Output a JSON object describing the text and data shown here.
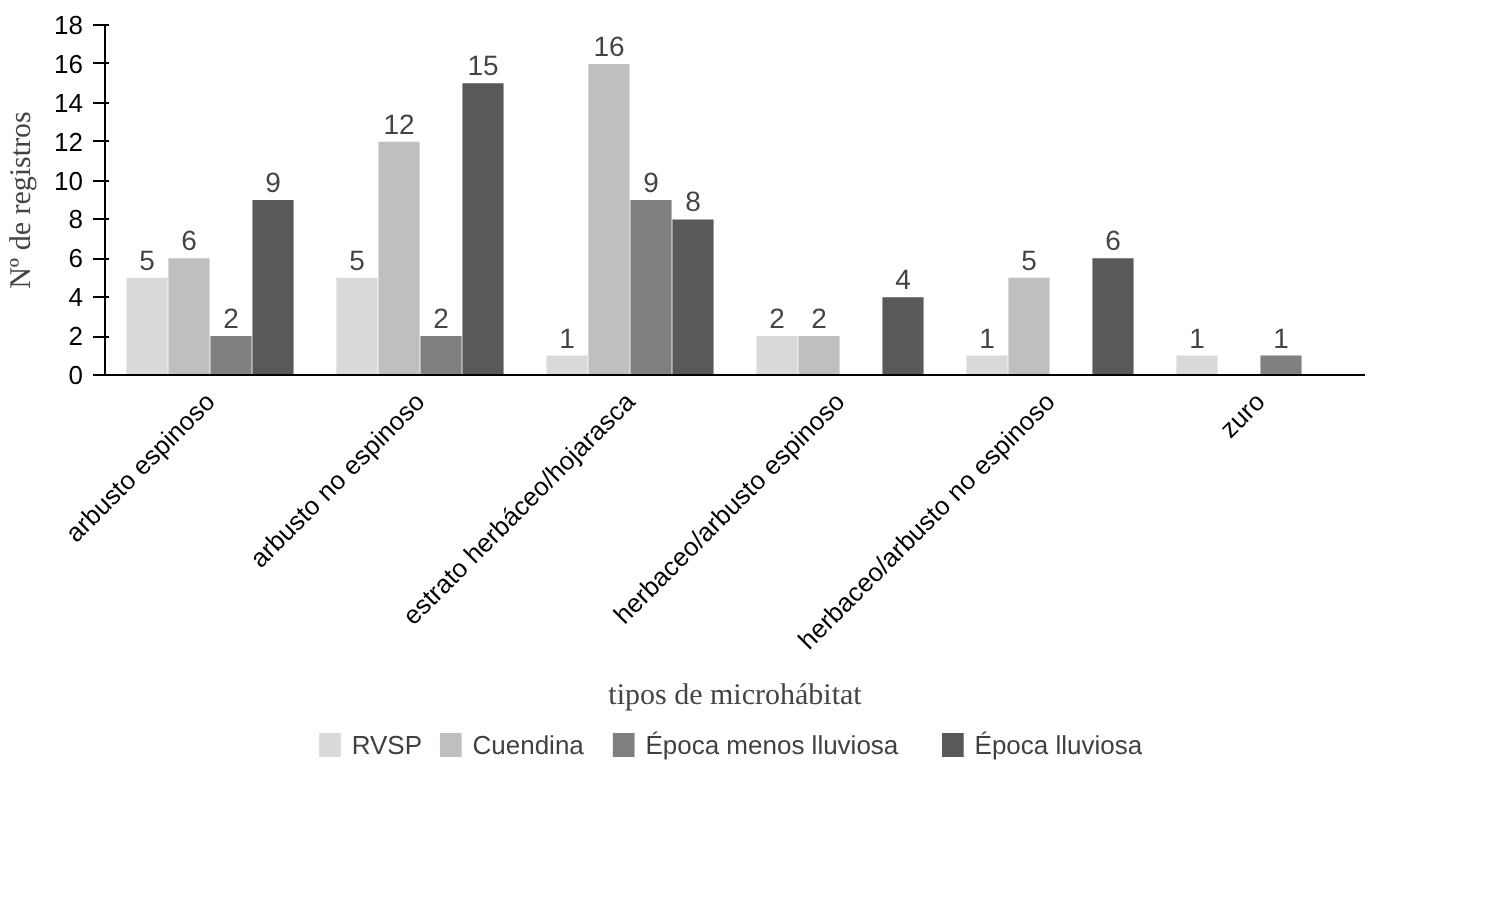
{
  "chart_data": {
    "type": "bar",
    "xlabel": "tipos de microhábitat",
    "ylabel": "Nº de registros",
    "categories": [
      "arbusto espinoso",
      "arbusto no espinoso",
      "estrato herbáceo/hojarasca",
      "herbaceo/arbusto espinoso",
      "herbaceo/arbusto no espinoso",
      "zuro"
    ],
    "series": [
      {
        "name": "RVSP",
        "color": "#d9d9d9",
        "values": [
          5,
          5,
          1,
          2,
          1,
          1
        ]
      },
      {
        "name": "Cuendina",
        "color": "#bfbfbf",
        "values": [
          6,
          12,
          16,
          2,
          5,
          null
        ]
      },
      {
        "name": "Época menos lluviosa",
        "color": "#808080",
        "values": [
          2,
          2,
          9,
          null,
          null,
          1
        ]
      },
      {
        "name": "Época lluviosa",
        "color": "#595959",
        "values": [
          9,
          15,
          8,
          4,
          6,
          null
        ]
      }
    ],
    "ylim": [
      0,
      18
    ],
    "yticks": [
      0,
      2,
      4,
      6,
      8,
      10,
      12,
      14,
      16,
      18
    ],
    "data_labels": true,
    "legend": "bottom"
  }
}
